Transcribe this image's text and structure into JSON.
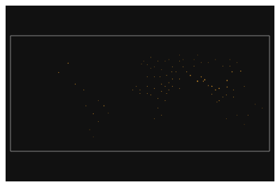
{
  "chart_data": {
    "type": "scatter",
    "color": "#e8a030",
    "tick_labels": false,
    "grid": false,
    "xlim": [
      -180,
      180
    ],
    "ylim": [
      -75,
      85
    ],
    "x": [
      -100,
      -113,
      -90,
      -78,
      -75,
      -65,
      -50,
      -58,
      -70,
      -65,
      -58,
      -44,
      15,
      25,
      35,
      10,
      2,
      20,
      30,
      37,
      45,
      55,
      44,
      50,
      65,
      70,
      80,
      90,
      100,
      110,
      105,
      121,
      121,
      128,
      140,
      130,
      110,
      150,
      10,
      20,
      30,
      15,
      25,
      35,
      40,
      25,
      30,
      20,
      15,
      5,
      10,
      45,
      55,
      35,
      30,
      40,
      37,
      0,
      -10,
      0,
      -5,
      10,
      20,
      28,
      45,
      60,
      55,
      75,
      85,
      95,
      115,
      125,
      135,
      125,
      105,
      75,
      60,
      40,
      55,
      80,
      130,
      145,
      160,
      120,
      135,
      120,
      115,
      107,
      100,
      95,
      88,
      85,
      170,
      145
    ],
    "y": [
      47,
      34,
      18,
      10,
      -12,
      -23,
      -12,
      -34,
      -45,
      -55,
      -5,
      -22,
      55,
      50,
      50,
      45,
      46,
      42,
      38,
      30,
      25,
      25,
      35,
      35,
      35,
      30,
      22,
      24,
      15,
      12,
      10,
      14,
      23,
      35,
      36,
      10,
      -5,
      -25,
      15,
      12,
      8,
      3,
      -2,
      -5,
      10,
      -15,
      -25,
      -30,
      40,
      50,
      5,
      15,
      12,
      15,
      18,
      20,
      5,
      10,
      10,
      5,
      15,
      28,
      28,
      28,
      42,
      42,
      50,
      43,
      48,
      48,
      43,
      43,
      48,
      52,
      52,
      52,
      52,
      52,
      58,
      58,
      0,
      15,
      -10,
      -30,
      -25,
      3,
      0,
      -7,
      4,
      16,
      22,
      28,
      -15,
      -38
    ],
    "sizes": [
      130,
      95,
      80,
      50,
      40,
      80,
      130,
      30,
      20,
      10,
      25,
      20,
      28,
      28,
      22,
      22,
      18,
      18,
      18,
      45,
      65,
      55,
      50,
      48,
      75,
      230,
      380,
      320,
      210,
      230,
      175,
      155,
      260,
      170,
      140,
      52,
      85,
      30,
      52,
      65,
      60,
      55,
      50,
      42,
      50,
      38,
      32,
      25,
      18,
      14,
      42,
      65,
      45,
      50,
      60,
      45,
      38,
      35,
      35,
      28,
      30,
      28,
      32,
      38,
      35,
      40,
      28,
      35,
      22,
      18,
      28,
      32,
      22,
      18,
      18,
      14,
      18,
      18,
      14,
      14,
      52,
      30,
      18,
      18,
      18,
      52,
      38,
      42,
      55,
      88,
      135,
      165,
      14,
      12
    ]
  }
}
